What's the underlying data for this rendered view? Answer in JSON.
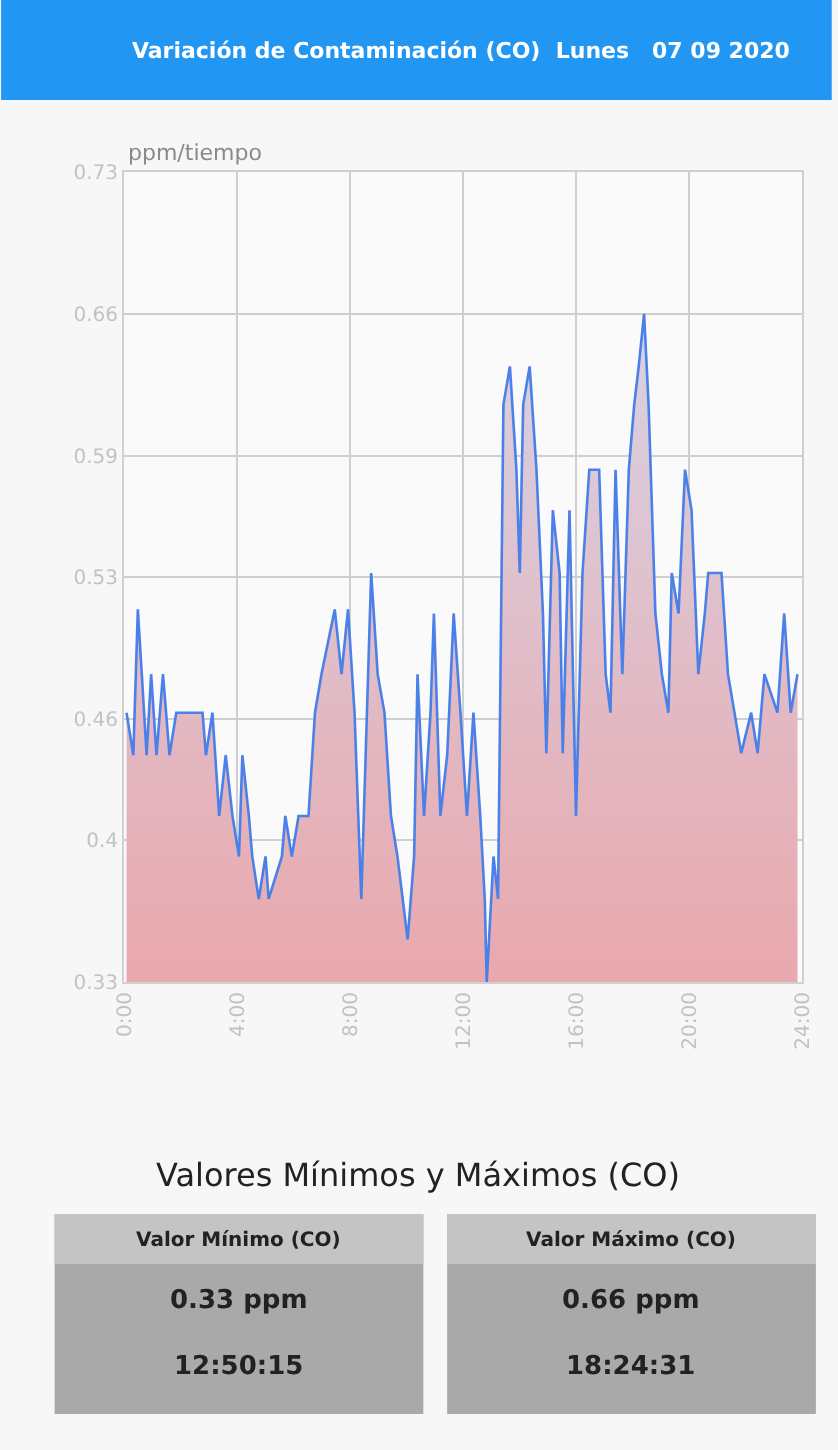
{
  "chart_data": {
    "type": "area",
    "title": "Variación de Contaminación (CO)  Lunes   07 09 2020",
    "ylabel": "ppm/tiempo",
    "x": [
      0.09,
      0.33,
      0.49,
      0.63,
      0.8,
      0.96,
      1.15,
      1.38,
      1.61,
      1.85,
      2.78,
      2.9,
      3.13,
      3.37,
      3.6,
      3.84,
      4.07,
      4.19,
      4.42,
      4.54,
      4.77,
      5.01,
      5.12,
      5.59,
      5.71,
      5.94,
      6.18,
      6.53,
      6.76,
      6.99,
      7.46,
      7.7,
      7.93,
      8.16,
      8.4,
      8.75,
      8.98,
      9.22,
      9.45,
      9.68,
      10.04,
      10.27,
      10.39,
      10.62,
      10.85,
      10.97,
      11.2,
      11.44,
      11.67,
      11.91,
      12.14,
      12.37,
      12.61,
      12.77,
      12.84,
      13.08,
      13.24,
      13.43,
      13.66,
      13.89,
      14.01,
      14.13,
      14.36,
      14.6,
      14.83,
      14.95,
      15.18,
      15.42,
      15.53,
      15.77,
      16.0,
      16.23,
      16.47,
      16.82,
      17.05,
      17.22,
      17.4,
      17.64,
      17.87,
      18.06,
      18.22,
      18.41,
      18.57,
      18.81,
      19.04,
      19.27,
      19.39,
      19.63,
      19.86,
      20.09,
      20.33,
      20.56,
      20.68,
      21.15,
      21.38,
      21.61,
      21.85,
      22.2,
      22.43,
      22.67,
      23.13,
      23.37,
      23.6,
      23.84
    ],
    "series": [
      {
        "color": "#4a80e8",
        "values": [
          0.463,
          0.442,
          0.514,
          0.482,
          0.442,
          0.482,
          0.442,
          0.482,
          0.442,
          0.463,
          0.463,
          0.442,
          0.463,
          0.412,
          0.442,
          0.412,
          0.392,
          0.442,
          0.412,
          0.392,
          0.371,
          0.392,
          0.371,
          0.392,
          0.412,
          0.392,
          0.412,
          0.412,
          0.463,
          0.482,
          0.514,
          0.482,
          0.514,
          0.463,
          0.371,
          0.532,
          0.482,
          0.463,
          0.412,
          0.392,
          0.351,
          0.392,
          0.482,
          0.412,
          0.463,
          0.512,
          0.412,
          0.442,
          0.512,
          0.463,
          0.412,
          0.463,
          0.412,
          0.371,
          0.33,
          0.392,
          0.371,
          0.615,
          0.634,
          0.583,
          0.532,
          0.615,
          0.634,
          0.583,
          0.512,
          0.443,
          0.563,
          0.532,
          0.443,
          0.563,
          0.412,
          0.532,
          0.583,
          0.583,
          0.482,
          0.463,
          0.583,
          0.482,
          0.583,
          0.615,
          0.634,
          0.66,
          0.615,
          0.512,
          0.482,
          0.463,
          0.532,
          0.512,
          0.583,
          0.563,
          0.482,
          0.512,
          0.532,
          0.532,
          0.482,
          0.463,
          0.443,
          0.463,
          0.443,
          0.482,
          0.463,
          0.512,
          0.463,
          0.482
        ]
      }
    ],
    "xlim": [
      0,
      24
    ],
    "xticks": [
      {
        "value": 0,
        "label": "0:00"
      },
      {
        "value": 4,
        "label": "4:00"
      },
      {
        "value": 8,
        "label": "8:00"
      },
      {
        "value": 12,
        "label": "12:00"
      },
      {
        "value": 16,
        "label": "16:00"
      },
      {
        "value": 20,
        "label": "20:00"
      },
      {
        "value": 24,
        "label": "24:00"
      }
    ],
    "ylim": [
      0.33,
      0.73
    ],
    "yticks": [
      0.33,
      0.4,
      0.46,
      0.53,
      0.59,
      0.66,
      0.73
    ],
    "grid": true,
    "legend": false,
    "annotations": [
      "Valores Mínimos y Máximos (CO)",
      "Valor Mínimo (CO)",
      "0.33 ppm",
      "12:50:15",
      "Valor Máximo (CO)",
      "0.66 ppm",
      "18:24:31"
    ]
  }
}
